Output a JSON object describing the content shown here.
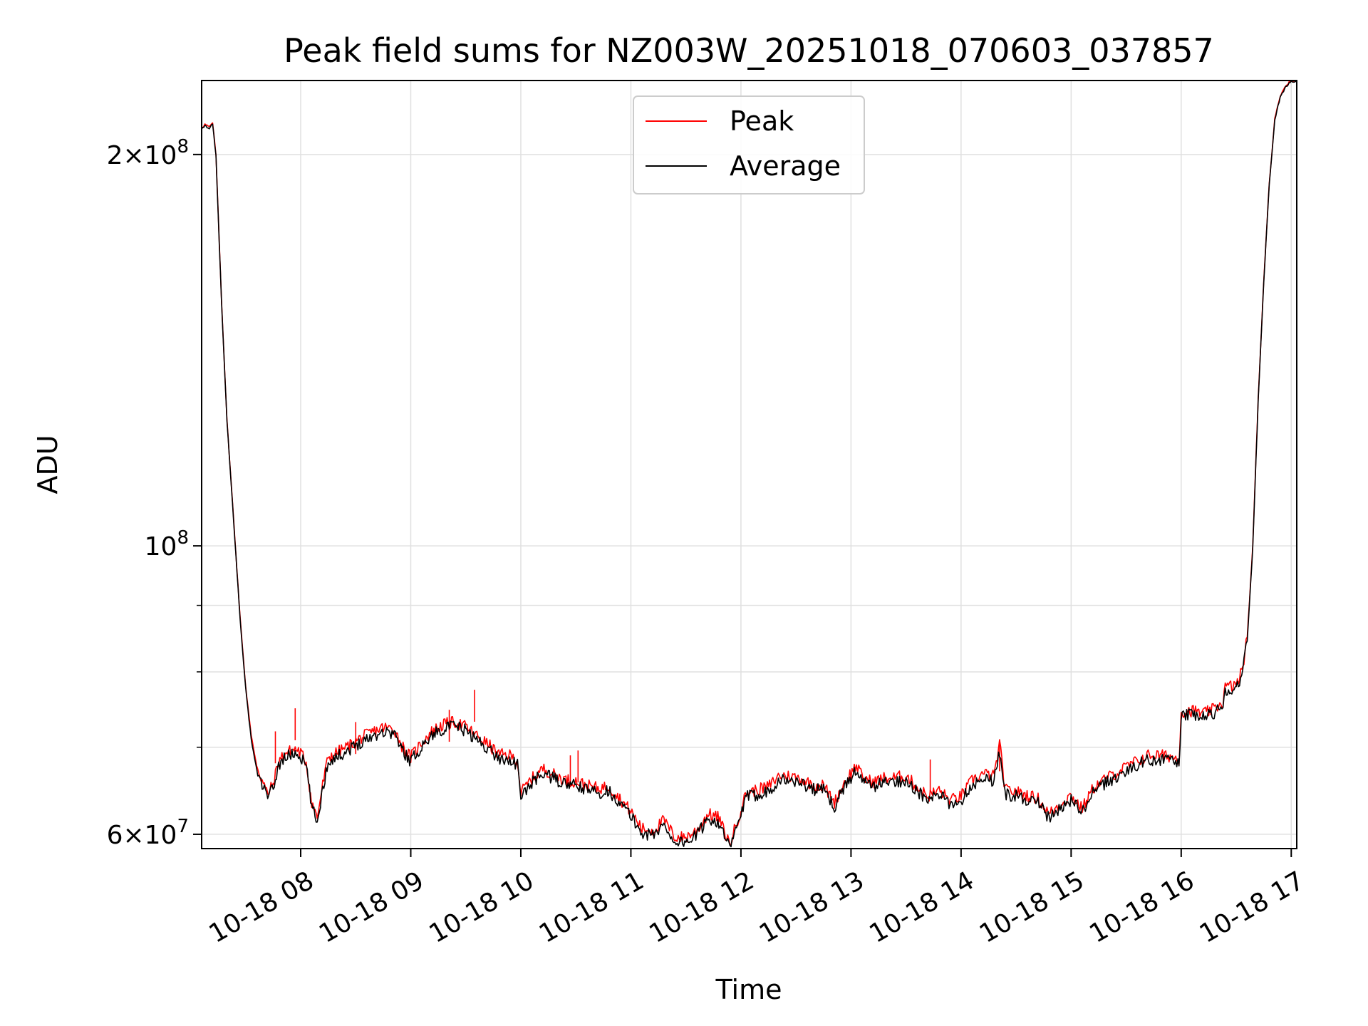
{
  "chart_data": {
    "type": "line",
    "title": "Peak field sums for NZ003W_20251018_070603_037857",
    "xlabel": "Time",
    "ylabel": "ADU",
    "yscale": "log",
    "ylim": [
      58500000,
      228000000
    ],
    "xlim_hours": [
      7.1,
      17.05
    ],
    "grid": true,
    "legend_position": "top-center",
    "colors": {
      "peak": "#ff0000",
      "average": "#000000",
      "grid": "#e0e0e0",
      "frame": "#000000"
    },
    "x_ticks": [
      {
        "hour": 8,
        "label": "10-18 08"
      },
      {
        "hour": 9,
        "label": "10-18 09"
      },
      {
        "hour": 10,
        "label": "10-18 10"
      },
      {
        "hour": 11,
        "label": "10-18 11"
      },
      {
        "hour": 12,
        "label": "10-18 12"
      },
      {
        "hour": 13,
        "label": "10-18 13"
      },
      {
        "hour": 14,
        "label": "10-18 14"
      },
      {
        "hour": 15,
        "label": "10-18 15"
      },
      {
        "hour": 16,
        "label": "10-18 16"
      },
      {
        "hour": 17,
        "label": "10-18 17"
      }
    ],
    "y_major_ticks": [
      {
        "value": 60000000,
        "base": "6×10",
        "exp": "7"
      },
      {
        "value": 100000000,
        "base": "10",
        "exp": "8"
      },
      {
        "value": 200000000,
        "base": "2×10",
        "exp": "8"
      }
    ],
    "y_minor_ticks": [
      70000000,
      80000000,
      90000000
    ],
    "series": [
      {
        "name": "Peak",
        "color": "#ff0000",
        "points": [
          [
            7.1,
            209500000
          ],
          [
            7.13,
            211000000
          ],
          [
            7.17,
            210000000
          ],
          [
            7.2,
            211500000
          ],
          [
            7.23,
            200000000
          ],
          [
            7.28,
            155000000
          ],
          [
            7.33,
            125000000
          ],
          [
            7.4,
            102000000
          ],
          [
            7.45,
            88000000
          ],
          [
            7.5,
            78000000
          ],
          [
            7.55,
            71500000
          ],
          [
            7.6,
            67800000
          ],
          [
            7.65,
            66000000
          ],
          [
            7.7,
            64400000
          ],
          [
            7.75,
            65600000
          ],
          [
            7.8,
            68300000
          ],
          [
            7.85,
            69200000
          ],
          [
            7.9,
            69500000
          ],
          [
            7.95,
            69800000
          ],
          [
            8.0,
            69300000
          ],
          [
            8.05,
            68200000
          ],
          [
            8.1,
            63500000
          ],
          [
            8.15,
            61800000
          ],
          [
            8.2,
            65500000
          ],
          [
            8.25,
            68800000
          ],
          [
            8.35,
            69500000
          ],
          [
            8.45,
            70300000
          ],
          [
            8.55,
            71200000
          ],
          [
            8.65,
            71900000
          ],
          [
            8.75,
            72500000
          ],
          [
            8.85,
            72300000
          ],
          [
            8.92,
            70200000
          ],
          [
            9.0,
            68800000
          ],
          [
            9.1,
            70600000
          ],
          [
            9.2,
            72100000
          ],
          [
            9.3,
            72900000
          ],
          [
            9.4,
            73200000
          ],
          [
            9.5,
            72600000
          ],
          [
            9.6,
            71400000
          ],
          [
            9.7,
            70400000
          ],
          [
            9.8,
            69100000
          ],
          [
            9.9,
            69000000
          ],
          [
            9.97,
            68300000
          ],
          [
            10.0,
            64600000
          ],
          [
            10.1,
            66200000
          ],
          [
            10.2,
            67400000
          ],
          [
            10.3,
            66700000
          ],
          [
            10.4,
            66100000
          ],
          [
            10.5,
            65900000
          ],
          [
            10.6,
            65400000
          ],
          [
            10.7,
            65100000
          ],
          [
            10.8,
            65300000
          ],
          [
            10.9,
            63900000
          ],
          [
            11.0,
            62500000
          ],
          [
            11.1,
            60600000
          ],
          [
            11.2,
            60400000
          ],
          [
            11.3,
            61500000
          ],
          [
            11.4,
            59700000
          ],
          [
            11.5,
            59700000
          ],
          [
            11.6,
            60400000
          ],
          [
            11.7,
            62200000
          ],
          [
            11.8,
            61800000
          ],
          [
            11.85,
            60200000
          ],
          [
            11.9,
            59000000
          ],
          [
            11.95,
            60800000
          ],
          [
            12.05,
            64600000
          ],
          [
            12.15,
            64900000
          ],
          [
            12.25,
            65300000
          ],
          [
            12.35,
            66600000
          ],
          [
            12.45,
            66500000
          ],
          [
            12.55,
            66200000
          ],
          [
            12.65,
            65500000
          ],
          [
            12.75,
            65400000
          ],
          [
            12.85,
            63500000
          ],
          [
            12.95,
            66000000
          ],
          [
            13.05,
            67800000
          ],
          [
            13.1,
            66400000
          ],
          [
            13.2,
            65800000
          ],
          [
            13.3,
            66300000
          ],
          [
            13.4,
            66300000
          ],
          [
            13.5,
            66600000
          ],
          [
            13.6,
            65200000
          ],
          [
            13.7,
            64200000
          ],
          [
            13.8,
            64900000
          ],
          [
            13.9,
            63700000
          ],
          [
            14.0,
            64200000
          ],
          [
            14.1,
            66000000
          ],
          [
            14.2,
            66800000
          ],
          [
            14.3,
            66500000
          ],
          [
            14.35,
            70500000
          ],
          [
            14.4,
            64900000
          ],
          [
            14.5,
            64700000
          ],
          [
            14.6,
            64300000
          ],
          [
            14.7,
            63900000
          ],
          [
            14.8,
            62200000
          ],
          [
            14.9,
            63300000
          ],
          [
            15.0,
            64300000
          ],
          [
            15.1,
            62800000
          ],
          [
            15.2,
            65100000
          ],
          [
            15.3,
            66100000
          ],
          [
            15.4,
            66800000
          ],
          [
            15.5,
            67600000
          ],
          [
            15.6,
            68300000
          ],
          [
            15.7,
            69000000
          ],
          [
            15.8,
            69000000
          ],
          [
            15.9,
            68900000
          ],
          [
            15.98,
            68500000
          ],
          [
            16.0,
            74500000
          ],
          [
            16.1,
            74700000
          ],
          [
            16.2,
            74300000
          ],
          [
            16.3,
            74900000
          ],
          [
            16.38,
            75900000
          ],
          [
            16.4,
            77900000
          ],
          [
            16.5,
            78100000
          ],
          [
            16.55,
            80000000
          ],
          [
            16.6,
            85000000
          ],
          [
            16.65,
            100000000
          ],
          [
            16.7,
            130000000
          ],
          [
            16.75,
            160000000
          ],
          [
            16.8,
            190000000
          ],
          [
            16.85,
            213000000
          ],
          [
            16.9,
            222000000
          ],
          [
            16.95,
            226000000
          ],
          [
            17.0,
            228000000
          ],
          [
            17.05,
            228000000
          ]
        ]
      },
      {
        "name": "Average",
        "color": "#000000",
        "points": [
          [
            7.1,
            209000000
          ],
          [
            7.13,
            210500000
          ],
          [
            7.17,
            209500000
          ],
          [
            7.2,
            211000000
          ],
          [
            7.23,
            199500000
          ],
          [
            7.28,
            154500000
          ],
          [
            7.33,
            124700000
          ],
          [
            7.4,
            101700000
          ],
          [
            7.45,
            87700000
          ],
          [
            7.5,
            77700000
          ],
          [
            7.55,
            71000000
          ],
          [
            7.6,
            67300000
          ],
          [
            7.65,
            65500000
          ],
          [
            7.7,
            64000000
          ],
          [
            7.75,
            65100000
          ],
          [
            7.8,
            67800000
          ],
          [
            7.85,
            68700000
          ],
          [
            7.9,
            69000000
          ],
          [
            7.95,
            69300000
          ],
          [
            8.0,
            68800000
          ],
          [
            8.05,
            67700000
          ],
          [
            8.1,
            63000000
          ],
          [
            8.15,
            61300000
          ],
          [
            8.2,
            65000000
          ],
          [
            8.25,
            68300000
          ],
          [
            8.35,
            69000000
          ],
          [
            8.45,
            69800000
          ],
          [
            8.55,
            70700000
          ],
          [
            8.65,
            71400000
          ],
          [
            8.75,
            72000000
          ],
          [
            8.85,
            71800000
          ],
          [
            8.92,
            69700000
          ],
          [
            9.0,
            68300000
          ],
          [
            9.1,
            70100000
          ],
          [
            9.2,
            71600000
          ],
          [
            9.3,
            72400000
          ],
          [
            9.4,
            72700000
          ],
          [
            9.5,
            72100000
          ],
          [
            9.6,
            70900000
          ],
          [
            9.7,
            69900000
          ],
          [
            9.8,
            68600000
          ],
          [
            9.9,
            68500000
          ],
          [
            9.97,
            67800000
          ],
          [
            10.0,
            64100000
          ],
          [
            10.1,
            65700000
          ],
          [
            10.2,
            66900000
          ],
          [
            10.3,
            66200000
          ],
          [
            10.4,
            65600000
          ],
          [
            10.5,
            65400000
          ],
          [
            10.6,
            64900000
          ],
          [
            10.7,
            64600000
          ],
          [
            10.8,
            64800000
          ],
          [
            10.9,
            63400000
          ],
          [
            11.0,
            62000000
          ],
          [
            11.1,
            60100000
          ],
          [
            11.2,
            59900000
          ],
          [
            11.3,
            61000000
          ],
          [
            11.4,
            59200000
          ],
          [
            11.5,
            59200000
          ],
          [
            11.6,
            59900000
          ],
          [
            11.7,
            61700000
          ],
          [
            11.8,
            61300000
          ],
          [
            11.85,
            59700000
          ],
          [
            11.9,
            58500000
          ],
          [
            11.95,
            60300000
          ],
          [
            12.05,
            64100000
          ],
          [
            12.15,
            64400000
          ],
          [
            12.25,
            64800000
          ],
          [
            12.35,
            66100000
          ],
          [
            12.45,
            66000000
          ],
          [
            12.55,
            65700000
          ],
          [
            12.65,
            65000000
          ],
          [
            12.75,
            64900000
          ],
          [
            12.85,
            63000000
          ],
          [
            12.95,
            65500000
          ],
          [
            13.05,
            67300000
          ],
          [
            13.1,
            65900000
          ],
          [
            13.2,
            65300000
          ],
          [
            13.3,
            65800000
          ],
          [
            13.4,
            65800000
          ],
          [
            13.5,
            66100000
          ],
          [
            13.6,
            64700000
          ],
          [
            13.7,
            63700000
          ],
          [
            13.8,
            64400000
          ],
          [
            13.9,
            63200000
          ],
          [
            14.0,
            63700000
          ],
          [
            14.1,
            65500000
          ],
          [
            14.2,
            66300000
          ],
          [
            14.3,
            66000000
          ],
          [
            14.35,
            69500000
          ],
          [
            14.4,
            64400000
          ],
          [
            14.5,
            64200000
          ],
          [
            14.6,
            63800000
          ],
          [
            14.7,
            63400000
          ],
          [
            14.8,
            61700000
          ],
          [
            14.9,
            62800000
          ],
          [
            15.0,
            63800000
          ],
          [
            15.1,
            62300000
          ],
          [
            15.2,
            64600000
          ],
          [
            15.3,
            65600000
          ],
          [
            15.4,
            66300000
          ],
          [
            15.5,
            67100000
          ],
          [
            15.6,
            67800000
          ],
          [
            15.7,
            68500000
          ],
          [
            15.8,
            68500000
          ],
          [
            15.9,
            68400000
          ],
          [
            15.98,
            68000000
          ],
          [
            16.0,
            74000000
          ],
          [
            16.1,
            74200000
          ],
          [
            16.2,
            73800000
          ],
          [
            16.3,
            74400000
          ],
          [
            16.38,
            75400000
          ],
          [
            16.4,
            77400000
          ],
          [
            16.5,
            77600000
          ],
          [
            16.55,
            79500000
          ],
          [
            16.6,
            84500000
          ],
          [
            16.65,
            99500000
          ],
          [
            16.7,
            129500000
          ],
          [
            16.75,
            159500000
          ],
          [
            16.8,
            189500000
          ],
          [
            16.85,
            212500000
          ],
          [
            16.9,
            221500000
          ],
          [
            16.95,
            225500000
          ],
          [
            17.0,
            227500000
          ],
          [
            17.05,
            227500000
          ]
        ]
      }
    ],
    "peak_spikes": [
      [
        7.77,
        72000000
      ],
      [
        7.95,
        75000000
      ],
      [
        8.5,
        73200000
      ],
      [
        9.35,
        74800000
      ],
      [
        9.58,
        77500000
      ],
      [
        10.45,
        69000000
      ],
      [
        10.52,
        69600000
      ],
      [
        13.72,
        68500000
      ],
      [
        14.35,
        71000000
      ]
    ]
  }
}
